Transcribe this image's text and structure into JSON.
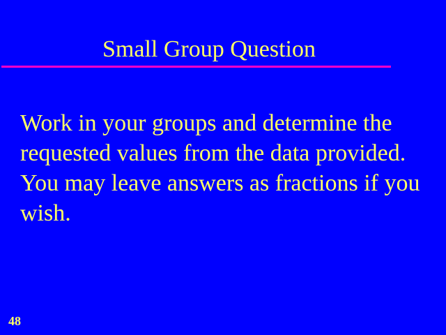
{
  "slide": {
    "title": "Small Group Question",
    "body": "Work in your groups and determine the requested values from the data provided. You may leave answers as fractions if you wish.",
    "number": "48"
  },
  "colors": {
    "background": "#0000FF",
    "text": "#FFFF66",
    "rule": "#FF00CC"
  }
}
